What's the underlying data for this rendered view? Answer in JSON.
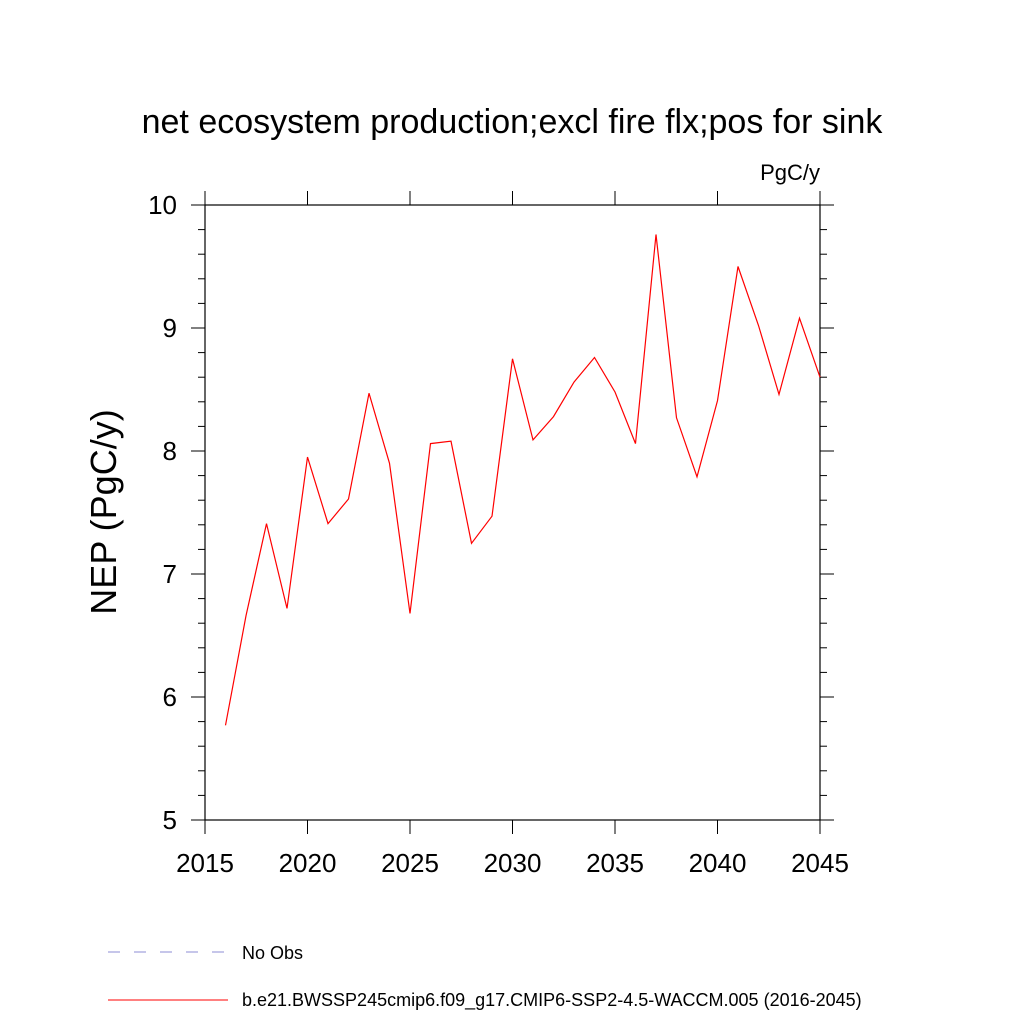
{
  "chart_data": {
    "type": "line",
    "title": "net ecosystem production;excl fire flx;pos for sink",
    "units": "PgC/y",
    "xlabel": "",
    "ylabel": "NEP  (PgC/y)",
    "xlim": [
      2015,
      2045
    ],
    "ylim": [
      5,
      10
    ],
    "xticks": [
      2015,
      2020,
      2025,
      2030,
      2035,
      2040,
      2045
    ],
    "yticks": [
      5,
      6,
      7,
      8,
      9,
      10
    ],
    "grid": false,
    "series": [
      {
        "name": "b.e21.BWSSP245cmip6.f09_g17.CMIP6-SSP2-4.5-WACCM.005 (2016-2045)",
        "color": "#ff0000",
        "x": [
          2016,
          2017,
          2018,
          2019,
          2020,
          2021,
          2022,
          2023,
          2024,
          2025,
          2026,
          2027,
          2028,
          2029,
          2030,
          2031,
          2032,
          2033,
          2034,
          2035,
          2036,
          2037,
          2038,
          2039,
          2040,
          2041,
          2042,
          2043,
          2044,
          2045
        ],
        "values": [
          5.77,
          6.66,
          7.41,
          6.72,
          7.95,
          7.41,
          7.61,
          8.47,
          7.9,
          6.68,
          8.06,
          8.08,
          7.25,
          7.47,
          8.75,
          8.09,
          8.28,
          8.56,
          8.76,
          8.48,
          8.06,
          9.76,
          8.27,
          7.79,
          8.41,
          9.5,
          9.02,
          8.46,
          9.08,
          8.6
        ]
      }
    ],
    "legend": [
      {
        "label": "No Obs",
        "style": "dashed",
        "color": "#8c8cd4"
      },
      {
        "label": "b.e21.BWSSP245cmip6.f09_g17.CMIP6-SSP2-4.5-WACCM.005 (2016-2045)",
        "style": "solid",
        "color": "#ff0000"
      }
    ],
    "legend_position": "bottom-left"
  }
}
